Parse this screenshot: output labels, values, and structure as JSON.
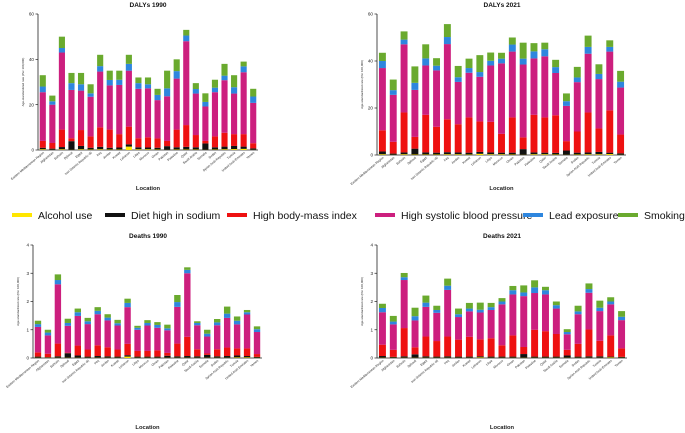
{
  "legend": [
    {
      "name": "Alcohol use",
      "color": "#ffe600"
    },
    {
      "name": "Diet high in sodium",
      "color": "#111111"
    },
    {
      "name": "High body-mass index",
      "color": "#ee1111"
    },
    {
      "name": "High systolic blood pressure",
      "color": "#cc1f7e"
    },
    {
      "name": "Lead exposure",
      "color": "#2e86de"
    },
    {
      "name": "Smoking",
      "color": "#6aaa2e"
    }
  ],
  "chart_data": [
    {
      "type": "bar",
      "stacked": true,
      "title": "DALYs 1990",
      "xlabel": "Location",
      "ylabel": "Age-standardized rate (Per 100,000)",
      "ylim": [
        0,
        60
      ],
      "yticks": [
        0,
        20,
        40,
        60
      ],
      "categories": [
        "Eastern Mediterranean Region",
        "Afghanistan",
        "Bahrain",
        "Djibouti",
        "Egypt",
        "Iran (Islamic Republic of)",
        "Iraq",
        "Jordan",
        "Kuwait",
        "Lebanon",
        "Libya",
        "Morocco",
        "Oman",
        "Pakistan",
        "Palestine",
        "Qatar",
        "Saudi Arabia",
        "Somalia",
        "Sudan",
        "Syrian Arab Republic",
        "Tunisia",
        "United Arab Emirates",
        "Yemen"
      ],
      "series": [
        {
          "name": "Alcohol use",
          "values": [
            0.3,
            0.1,
            0.3,
            0.1,
            0.3,
            0.2,
            0.3,
            0.2,
            0.2,
            1.5,
            0.3,
            0.3,
            0.2,
            0.1,
            0.2,
            0.2,
            0.2,
            0.1,
            0.2,
            0.3,
            0.4,
            0.5,
            0.1
          ]
        },
        {
          "name": "Diet high in sodium",
          "values": [
            0.7,
            0.5,
            1.0,
            3.8,
            1.5,
            0.8,
            1.1,
            0.8,
            0.9,
            1.0,
            0.9,
            0.8,
            0.8,
            1.6,
            1.0,
            1.2,
            1.0,
            2.8,
            1.0,
            1.2,
            1.4,
            1.0,
            0.6
          ]
        },
        {
          "name": "High body-mass index",
          "values": [
            3.0,
            2.5,
            7.7,
            1.3,
            7.0,
            5.0,
            8.6,
            8.0,
            5.9,
            7.8,
            4.0,
            4.5,
            4.1,
            2.3,
            7.8,
            9.6,
            5.4,
            1.1,
            4.8,
            6.1,
            5.2,
            5.5,
            2.3
          ]
        },
        {
          "name": "High systolic blood pressure",
          "values": [
            21.5,
            16.9,
            34.0,
            21.3,
            17.4,
            17.5,
            24.6,
            19.5,
            21.7,
            24.7,
            21.8,
            21.6,
            16.9,
            19.7,
            22.5,
            37.0,
            18.3,
            15.2,
            19.5,
            23.2,
            17.9,
            27.3,
            17.8
          ]
        },
        {
          "name": "Lead exposure",
          "values": [
            2.5,
            1.5,
            2.0,
            3.0,
            2.8,
            1.5,
            2.4,
            2.4,
            2.3,
            3.0,
            2.5,
            1.8,
            2.3,
            3.5,
            3.3,
            2.5,
            2.0,
            2.0,
            2.0,
            2.0,
            2.8,
            2.6,
            2.8
          ]
        },
        {
          "name": "Smoking",
          "values": [
            5.0,
            2.5,
            5.0,
            4.5,
            5.0,
            4.0,
            5.0,
            4.1,
            4.0,
            4.0,
            2.5,
            3.0,
            2.7,
            7.8,
            5.2,
            2.5,
            2.6,
            3.8,
            3.5,
            5.2,
            5.3,
            2.1,
            3.4
          ]
        }
      ]
    },
    {
      "type": "bar",
      "stacked": true,
      "title": "DALYs 2021",
      "xlabel": "Location",
      "ylabel": "Age-standardized rate (Per 100,000)",
      "ylim": [
        0,
        60
      ],
      "yticks": [
        0,
        20,
        40,
        60
      ],
      "categories": [
        "Eastern Mediterranean Region",
        "Afghanistan",
        "Bahrain",
        "Djibouti",
        "Egypt",
        "Iran (Islamic Republic of)",
        "Iraq",
        "Jordan",
        "Kuwait",
        "Lebanon",
        "Libya",
        "Morocco",
        "Oman",
        "Pakistan",
        "Palestine",
        "Qatar",
        "Saudi Arabia",
        "Somalia",
        "Sudan",
        "Syrian Arab Republic",
        "Tunisia",
        "United Arab Emirates",
        "Yemen"
      ],
      "series": [
        {
          "name": "Alcohol use",
          "values": [
            0.3,
            0.1,
            0.3,
            0.2,
            0.2,
            0.2,
            0.3,
            0.3,
            0.2,
            0.5,
            0.3,
            0.3,
            0.2,
            0.1,
            0.3,
            0.3,
            0.2,
            0.1,
            0.2,
            0.3,
            0.3,
            0.4,
            0.1
          ]
        },
        {
          "name": "Diet high in sodium",
          "values": [
            1.2,
            0.5,
            0.8,
            2.5,
            0.9,
            0.8,
            0.9,
            0.8,
            0.8,
            0.8,
            0.8,
            0.7,
            0.8,
            2.4,
            0.8,
            0.7,
            0.7,
            1.8,
            0.8,
            0.8,
            1.0,
            0.6,
            0.6
          ]
        },
        {
          "name": "High body-mass index",
          "values": [
            9.0,
            5.0,
            17.0,
            5.0,
            16.0,
            11.0,
            14.0,
            12.0,
            15.0,
            13.0,
            13.0,
            8.0,
            15.0,
            5.0,
            16.0,
            15.0,
            16.0,
            4.0,
            9.0,
            17.0,
            10.0,
            18.0,
            8.0
          ]
        },
        {
          "name": "High systolic blood pressure",
          "values": [
            26.5,
            20.0,
            29.0,
            20.0,
            21.0,
            24.0,
            32.0,
            18.0,
            19.0,
            19.0,
            24.0,
            30.0,
            28.0,
            31.0,
            24.0,
            26.0,
            18.0,
            15.0,
            21.0,
            25.0,
            21.0,
            25.0,
            20.0
          ]
        },
        {
          "name": "Lead exposure",
          "values": [
            3.0,
            2.0,
            2.0,
            3.0,
            3.0,
            2.0,
            3.0,
            2.0,
            2.0,
            2.0,
            2.0,
            2.0,
            3.0,
            2.5,
            3.0,
            3.0,
            2.5,
            2.0,
            2.0,
            2.9,
            2.2,
            2.0,
            2.5
          ]
        },
        {
          "name": "Smoking",
          "values": [
            3.5,
            4.5,
            3.5,
            7.0,
            6.0,
            3.2,
            5.5,
            4.8,
            4.0,
            7.2,
            3.5,
            2.5,
            3.0,
            6.8,
            3.5,
            2.8,
            3.1,
            3.3,
            4.5,
            4.8,
            4.1,
            2.8,
            4.6
          ]
        }
      ]
    },
    {
      "type": "bar",
      "stacked": true,
      "title": "Deaths 1990",
      "xlabel": "Location",
      "ylabel": "Age-standardized rate (Per 100,000)",
      "ylim": [
        0,
        4
      ],
      "yticks": [
        0,
        1,
        2,
        3,
        4
      ],
      "categories": [
        "Eastern Mediterranean Region",
        "Afghanistan",
        "Bahrain",
        "Djibouti",
        "Egypt",
        "Iran (Islamic Republic of)",
        "Iraq",
        "Jordan",
        "Kuwait",
        "Lebanon",
        "Libya",
        "Morocco",
        "Oman",
        "Pakistan",
        "Palestine",
        "Qatar",
        "Saudi Arabia",
        "Somalia",
        "Sudan",
        "Syrian Arab Republic",
        "Tunisia",
        "United Arab Emirates",
        "Yemen"
      ],
      "series": [
        {
          "name": "Alcohol use",
          "values": [
            0.01,
            0.01,
            0.01,
            0.01,
            0.01,
            0.01,
            0.01,
            0.01,
            0.01,
            0.05,
            0.01,
            0.01,
            0.01,
            0.01,
            0.01,
            0.01,
            0.01,
            0.01,
            0.01,
            0.01,
            0.02,
            0.02,
            0.01
          ]
        },
        {
          "name": "Diet high in sodium",
          "values": [
            0.04,
            0.02,
            0.05,
            0.16,
            0.08,
            0.04,
            0.06,
            0.05,
            0.04,
            0.05,
            0.04,
            0.04,
            0.04,
            0.07,
            0.05,
            0.06,
            0.05,
            0.1,
            0.05,
            0.06,
            0.07,
            0.05,
            0.03
          ]
        },
        {
          "name": "High body-mass index",
          "values": [
            0.15,
            0.12,
            0.45,
            0.02,
            0.35,
            0.25,
            0.38,
            0.32,
            0.25,
            0.4,
            0.2,
            0.2,
            0.22,
            0.1,
            0.45,
            0.68,
            0.25,
            0.05,
            0.25,
            0.3,
            0.25,
            0.27,
            0.1
          ]
        },
        {
          "name": "High systolic blood pressure",
          "values": [
            0.9,
            0.65,
            2.1,
            0.95,
            1.05,
            0.9,
            1.1,
            0.95,
            0.85,
            1.3,
            0.75,
            0.9,
            0.8,
            0.8,
            1.3,
            2.25,
            0.85,
            0.6,
            0.85,
            1.05,
            0.85,
            1.2,
            0.78
          ]
        },
        {
          "name": "Lead exposure",
          "values": [
            0.1,
            0.1,
            0.15,
            0.1,
            0.13,
            0.1,
            0.12,
            0.1,
            0.08,
            0.15,
            0.07,
            0.09,
            0.1,
            0.07,
            0.17,
            0.12,
            0.08,
            0.1,
            0.1,
            0.15,
            0.13,
            0.08,
            0.1
          ]
        },
        {
          "name": "Smoking",
          "values": [
            0.12,
            0.1,
            0.2,
            0.15,
            0.13,
            0.12,
            0.13,
            0.12,
            0.12,
            0.15,
            0.07,
            0.1,
            0.1,
            0.13,
            0.25,
            0.09,
            0.06,
            0.14,
            0.12,
            0.25,
            0.15,
            0.08,
            0.1
          ]
        }
      ]
    },
    {
      "type": "bar",
      "stacked": true,
      "title": "Deaths 2021",
      "xlabel": "Location",
      "ylabel": "Age-standardized rate (Per 100,000)",
      "ylim": [
        0,
        4
      ],
      "yticks": [
        0,
        1,
        2,
        3,
        4
      ],
      "categories": [
        "Eastern Mediterranean Region",
        "Afghanistan",
        "Bahrain",
        "Djibouti",
        "Egypt",
        "Iran (Islamic Republic of)",
        "Iraq",
        "Jordan",
        "Kuwait",
        "Lebanon",
        "Libya",
        "Morocco",
        "Oman",
        "Pakistan",
        "Palestine",
        "Qatar",
        "Saudi Arabia",
        "Somalia",
        "Sudan",
        "Syrian Arab Republic",
        "Tunisia",
        "United Arab Emirates",
        "Yemen"
      ],
      "series": [
        {
          "name": "Alcohol use",
          "values": [
            0.01,
            0.01,
            0.01,
            0.01,
            0.01,
            0.01,
            0.01,
            0.01,
            0.01,
            0.02,
            0.01,
            0.01,
            0.01,
            0.01,
            0.01,
            0.01,
            0.01,
            0.01,
            0.01,
            0.01,
            0.01,
            0.02,
            0.01
          ]
        },
        {
          "name": "Diet high in sodium",
          "values": [
            0.06,
            0.03,
            0.05,
            0.12,
            0.05,
            0.04,
            0.05,
            0.04,
            0.04,
            0.04,
            0.04,
            0.04,
            0.04,
            0.13,
            0.04,
            0.04,
            0.04,
            0.08,
            0.04,
            0.05,
            0.05,
            0.03,
            0.03
          ]
        },
        {
          "name": "High body-mass index",
          "values": [
            0.4,
            0.25,
            1.0,
            0.25,
            0.7,
            0.55,
            0.7,
            0.6,
            0.7,
            0.6,
            0.65,
            0.4,
            0.75,
            0.25,
            0.95,
            0.9,
            0.8,
            0.2,
            0.45,
            0.95,
            0.55,
            0.75,
            0.3
          ]
        },
        {
          "name": "High systolic blood pressure",
          "values": [
            1.15,
            0.9,
            1.7,
            0.95,
            1.05,
            1.0,
            1.65,
            0.8,
            0.9,
            0.95,
            1.0,
            1.45,
            1.45,
            1.8,
            1.3,
            1.3,
            0.9,
            0.55,
            1.05,
            1.3,
            1.05,
            1.1,
            1.0
          ]
        },
        {
          "name": "Lead exposure",
          "values": [
            0.15,
            0.1,
            0.1,
            0.15,
            0.15,
            0.1,
            0.15,
            0.1,
            0.1,
            0.1,
            0.1,
            0.1,
            0.15,
            0.13,
            0.2,
            0.15,
            0.12,
            0.08,
            0.1,
            0.13,
            0.12,
            0.1,
            0.12
          ]
        },
        {
          "name": "Smoking",
          "values": [
            0.15,
            0.2,
            0.15,
            0.3,
            0.25,
            0.15,
            0.25,
            0.2,
            0.2,
            0.25,
            0.15,
            0.12,
            0.15,
            0.25,
            0.25,
            0.12,
            0.13,
            0.1,
            0.2,
            0.2,
            0.25,
            0.15,
            0.2
          ]
        }
      ]
    }
  ]
}
